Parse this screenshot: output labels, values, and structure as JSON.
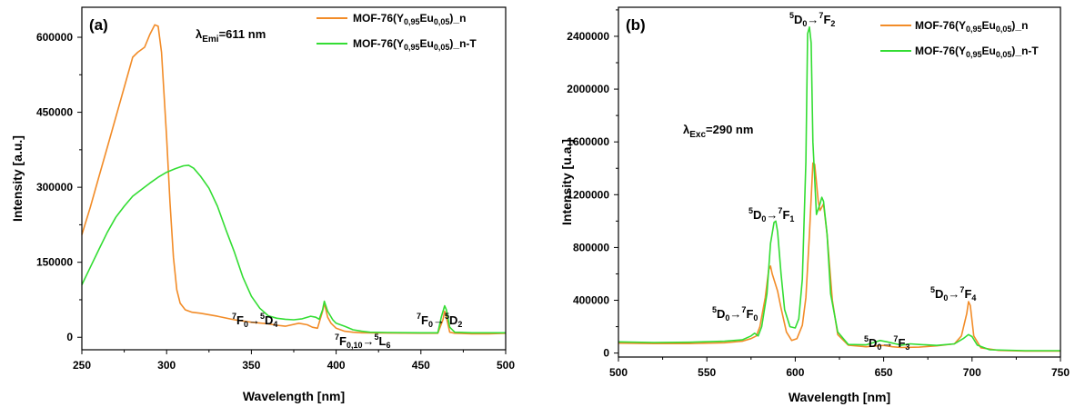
{
  "chart_data": [
    {
      "type": "line",
      "panel_label": "(a)",
      "xlabel": "Wavelength [nm]",
      "ylabel": "Intensity [a.u.]",
      "xlim": [
        250,
        500
      ],
      "ylim": [
        -25000,
        660000
      ],
      "xticks": [
        250,
        300,
        350,
        400,
        450,
        500
      ],
      "yticks": [
        0,
        150000,
        300000,
        450000,
        600000
      ],
      "inset_text": {
        "prefix": "λ",
        "sub": "Emi",
        "suffix": "=611 nm"
      },
      "legend": [
        {
          "label_parts": [
            "MOF-76(Y",
            "0,95",
            "Eu",
            "0,05",
            ")_n"
          ],
          "color": "#f28c28"
        },
        {
          "label_parts": [
            "MOF-76(Y",
            "0,95",
            "Eu",
            "0,05",
            ")_n-T"
          ],
          "color": "#33dd33"
        }
      ],
      "annotations": [
        {
          "parts": [
            "",
            "7",
            "F",
            "0",
            "→",
            "5",
            "D",
            "4"
          ]
        },
        {
          "parts": [
            "",
            "7",
            "F",
            "0,10",
            "→",
            "5",
            "L",
            "6"
          ]
        },
        {
          "parts": [
            "",
            "7",
            "F",
            "0",
            "→",
            "5",
            "D",
            "2"
          ]
        }
      ],
      "series": [
        {
          "color": "#f28c28",
          "points": [
            [
              250,
              205000
            ],
            [
              255,
              260000
            ],
            [
              260,
              320000
            ],
            [
              265,
              380000
            ],
            [
              270,
              440000
            ],
            [
              275,
              500000
            ],
            [
              280,
              560000
            ],
            [
              283,
              570000
            ],
            [
              287,
              580000
            ],
            [
              290,
              605000
            ],
            [
              293,
              625000
            ],
            [
              295,
              622000
            ],
            [
              297,
              570000
            ],
            [
              300,
              400000
            ],
            [
              302,
              270000
            ],
            [
              304,
              160000
            ],
            [
              306,
              95000
            ],
            [
              308,
              68000
            ],
            [
              311,
              55000
            ],
            [
              315,
              50000
            ],
            [
              320,
              48000
            ],
            [
              330,
              42000
            ],
            [
              340,
              35000
            ],
            [
              350,
              30000
            ],
            [
              360,
              27000
            ],
            [
              365,
              24000
            ],
            [
              370,
              22000
            ],
            [
              378,
              28000
            ],
            [
              383,
              25000
            ],
            [
              386,
              20000
            ],
            [
              389,
              18000
            ],
            [
              392,
              52000
            ],
            [
              393,
              68000
            ],
            [
              395,
              40000
            ],
            [
              397,
              28000
            ],
            [
              400,
              18000
            ],
            [
              405,
              12000
            ],
            [
              410,
              10000
            ],
            [
              415,
              9000
            ],
            [
              430,
              8500
            ],
            [
              450,
              8000
            ],
            [
              460,
              8000
            ],
            [
              463,
              35000
            ],
            [
              464,
              52000
            ],
            [
              465,
              40000
            ],
            [
              467,
              10000
            ],
            [
              470,
              8000
            ],
            [
              480,
              7000
            ],
            [
              490,
              7000
            ],
            [
              500,
              8000
            ]
          ]
        },
        {
          "color": "#33dd33",
          "points": [
            [
              250,
              105000
            ],
            [
              255,
              140000
            ],
            [
              260,
              175000
            ],
            [
              265,
              210000
            ],
            [
              270,
              240000
            ],
            [
              275,
              262000
            ],
            [
              280,
              282000
            ],
            [
              285,
              295000
            ],
            [
              290,
              308000
            ],
            [
              295,
              320000
            ],
            [
              300,
              330000
            ],
            [
              305,
              337000
            ],
            [
              310,
              343000
            ],
            [
              313,
              344000
            ],
            [
              316,
              338000
            ],
            [
              320,
              322000
            ],
            [
              325,
              298000
            ],
            [
              330,
              262000
            ],
            [
              335,
              215000
            ],
            [
              340,
              170000
            ],
            [
              345,
              120000
            ],
            [
              350,
              82000
            ],
            [
              355,
              58000
            ],
            [
              360,
              43000
            ],
            [
              365,
              38000
            ],
            [
              370,
              36000
            ],
            [
              375,
              35000
            ],
            [
              380,
              37000
            ],
            [
              385,
              42000
            ],
            [
              388,
              40000
            ],
            [
              390,
              36000
            ],
            [
              392,
              55000
            ],
            [
              393,
              72000
            ],
            [
              395,
              52000
            ],
            [
              398,
              35000
            ],
            [
              400,
              28000
            ],
            [
              405,
              22000
            ],
            [
              410,
              15000
            ],
            [
              415,
              12000
            ],
            [
              420,
              10000
            ],
            [
              430,
              9500
            ],
            [
              450,
              9000
            ],
            [
              460,
              9000
            ],
            [
              462,
              40000
            ],
            [
              464,
              63000
            ],
            [
              465,
              55000
            ],
            [
              467,
              20000
            ],
            [
              470,
              10000
            ],
            [
              480,
              9000
            ],
            [
              490,
              9000
            ],
            [
              500,
              9000
            ]
          ]
        }
      ]
    },
    {
      "type": "line",
      "panel_label": "(b)",
      "xlabel": "Wavelength [nm]",
      "ylabel": "Intensity [u.a.]",
      "xlim": [
        500,
        750
      ],
      "ylim": [
        -30000,
        2620000
      ],
      "xticks": [
        500,
        550,
        600,
        650,
        700,
        750
      ],
      "yticks": [
        0,
        400000,
        800000,
        1200000,
        1600000,
        2000000,
        2400000
      ],
      "inset_text": {
        "prefix": "λ",
        "sub": "Exc",
        "suffix": "=290 nm"
      },
      "legend": [
        {
          "label_parts": [
            "MOF-76(Y",
            "0,95",
            "Eu",
            "0,05",
            ")_n"
          ],
          "color": "#f28c28"
        },
        {
          "label_parts": [
            "MOF-76(Y",
            "0,95",
            "Eu",
            "0,05",
            ")_n-T"
          ],
          "color": "#33dd33"
        }
      ],
      "annotations": [
        {
          "parts": [
            "",
            "5",
            "D",
            "0",
            "→",
            "7",
            "F",
            "2"
          ]
        },
        {
          "parts": [
            "",
            "5",
            "D",
            "0",
            "→",
            "7",
            "F",
            "1"
          ]
        },
        {
          "parts": [
            "",
            "5",
            "D",
            "0",
            "→",
            "7",
            "F",
            "0"
          ]
        },
        {
          "parts": [
            "",
            "5",
            "D",
            "0",
            "→",
            "7",
            "F",
            "3"
          ]
        },
        {
          "parts": [
            "",
            "5",
            "D",
            "0",
            "→",
            "7",
            "F",
            "4"
          ]
        }
      ],
      "series": [
        {
          "color": "#f28c28",
          "points": [
            [
              500,
              75000
            ],
            [
              520,
              72000
            ],
            [
              540,
              72000
            ],
            [
              560,
              78000
            ],
            [
              570,
              90000
            ],
            [
              575,
              110000
            ],
            [
              578,
              130000
            ],
            [
              580,
              200000
            ],
            [
              583,
              420000
            ],
            [
              585,
              630000
            ],
            [
              586,
              660000
            ],
            [
              587,
              600000
            ],
            [
              590,
              470000
            ],
            [
              592,
              340000
            ],
            [
              595,
              160000
            ],
            [
              598,
              95000
            ],
            [
              601,
              110000
            ],
            [
              604,
              210000
            ],
            [
              606,
              420000
            ],
            [
              608,
              900000
            ],
            [
              610,
              1440000
            ],
            [
              611,
              1430000
            ],
            [
              613,
              1150000
            ],
            [
              614,
              1080000
            ],
            [
              616,
              1130000
            ],
            [
              618,
              900000
            ],
            [
              621,
              400000
            ],
            [
              624,
              140000
            ],
            [
              630,
              60000
            ],
            [
              640,
              48000
            ],
            [
              650,
              58000
            ],
            [
              655,
              48000
            ],
            [
              660,
              42000
            ],
            [
              670,
              45000
            ],
            [
              680,
              55000
            ],
            [
              690,
              70000
            ],
            [
              694,
              130000
            ],
            [
              697,
              300000
            ],
            [
              698,
              390000
            ],
            [
              699,
              360000
            ],
            [
              701,
              130000
            ],
            [
              705,
              40000
            ],
            [
              715,
              20000
            ],
            [
              730,
              15000
            ],
            [
              750,
              15000
            ]
          ]
        },
        {
          "color": "#33dd33",
          "points": [
            [
              500,
              85000
            ],
            [
              520,
              80000
            ],
            [
              540,
              82000
            ],
            [
              560,
              90000
            ],
            [
              570,
              100000
            ],
            [
              575,
              130000
            ],
            [
              577,
              150000
            ],
            [
              579,
              130000
            ],
            [
              581,
              200000
            ],
            [
              584,
              450000
            ],
            [
              586,
              830000
            ],
            [
              588,
              990000
            ],
            [
              589,
              1000000
            ],
            [
              590,
              920000
            ],
            [
              592,
              600000
            ],
            [
              594,
              330000
            ],
            [
              597,
              200000
            ],
            [
              600,
              190000
            ],
            [
              602,
              260000
            ],
            [
              604,
              560000
            ],
            [
              606,
              1450000
            ],
            [
              607,
              2420000
            ],
            [
              608,
              2470000
            ],
            [
              609,
              2350000
            ],
            [
              610,
              1600000
            ],
            [
              612,
              1050000
            ],
            [
              614,
              1130000
            ],
            [
              615,
              1180000
            ],
            [
              616,
              1150000
            ],
            [
              618,
              900000
            ],
            [
              620,
              450000
            ],
            [
              624,
              160000
            ],
            [
              630,
              65000
            ],
            [
              640,
              62000
            ],
            [
              648,
              95000
            ],
            [
              652,
              85000
            ],
            [
              660,
              60000
            ],
            [
              665,
              70000
            ],
            [
              670,
              65000
            ],
            [
              680,
              58000
            ],
            [
              690,
              70000
            ],
            [
              695,
              110000
            ],
            [
              698,
              140000
            ],
            [
              700,
              125000
            ],
            [
              703,
              60000
            ],
            [
              710,
              25000
            ],
            [
              730,
              18000
            ],
            [
              750,
              18000
            ]
          ]
        }
      ]
    }
  ]
}
